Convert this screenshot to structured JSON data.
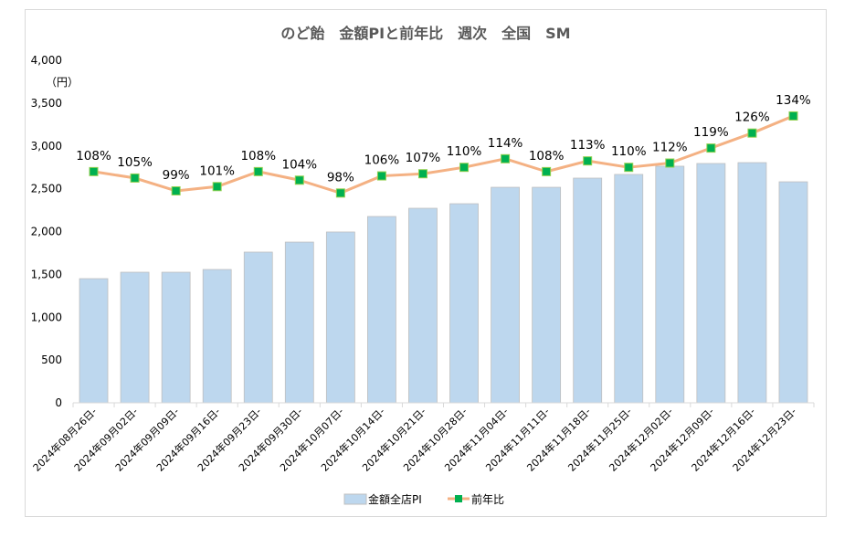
{
  "chart_data": {
    "type": "bar+line",
    "title": "のど飴　金額PIと前年比　週次　全国　SM",
    "ylabel": "（円）",
    "ylim": [
      0,
      4000
    ],
    "yticks": [
      "0",
      "500",
      "1,000",
      "1,500",
      "2,000",
      "2,500",
      "3,000",
      "3,500",
      "4,000"
    ],
    "secondary_ylim_percent": [
      0,
      160
    ],
    "grid": false,
    "legend_position": "bottom",
    "categories": [
      "2024年08月26日-",
      "2024年09月02日-",
      "2024年09月09日-",
      "2024年09月16日-",
      "2024年09月23日-",
      "2024年09月30日-",
      "2024年10月07日-",
      "2024年10月14日-",
      "2024年10月21日-",
      "2024年10月28日-",
      "2024年11月04日-",
      "2024年11月11日-",
      "2024年11月18日-",
      "2024年11月25日-",
      "2024年12月02日-",
      "2024年12月09日-",
      "2024年12月16日-",
      "2024年12月23日-"
    ],
    "series": [
      {
        "name": "金額全店PI",
        "type": "bar",
        "color": "#bdd7ee",
        "values": [
          1450,
          1525,
          1525,
          1557,
          1760,
          1877,
          1995,
          2176,
          2272,
          2325,
          2517,
          2517,
          2624,
          2667,
          2763,
          2795,
          2805,
          2581
        ]
      },
      {
        "name": "前年比",
        "type": "line",
        "color": "#f4b183",
        "marker_color": "#00b050",
        "axis": "secondary",
        "values": [
          108,
          105,
          99,
          101,
          108,
          104,
          98,
          106,
          107,
          110,
          114,
          108,
          113,
          110,
          112,
          119,
          126,
          134
        ],
        "labels": [
          "108%",
          "105%",
          "99%",
          "101%",
          "108%",
          "104%",
          "98%",
          "106%",
          "107%",
          "110%",
          "114%",
          "108%",
          "113%",
          "110%",
          "112%",
          "119%",
          "126%",
          "134%"
        ]
      }
    ]
  }
}
